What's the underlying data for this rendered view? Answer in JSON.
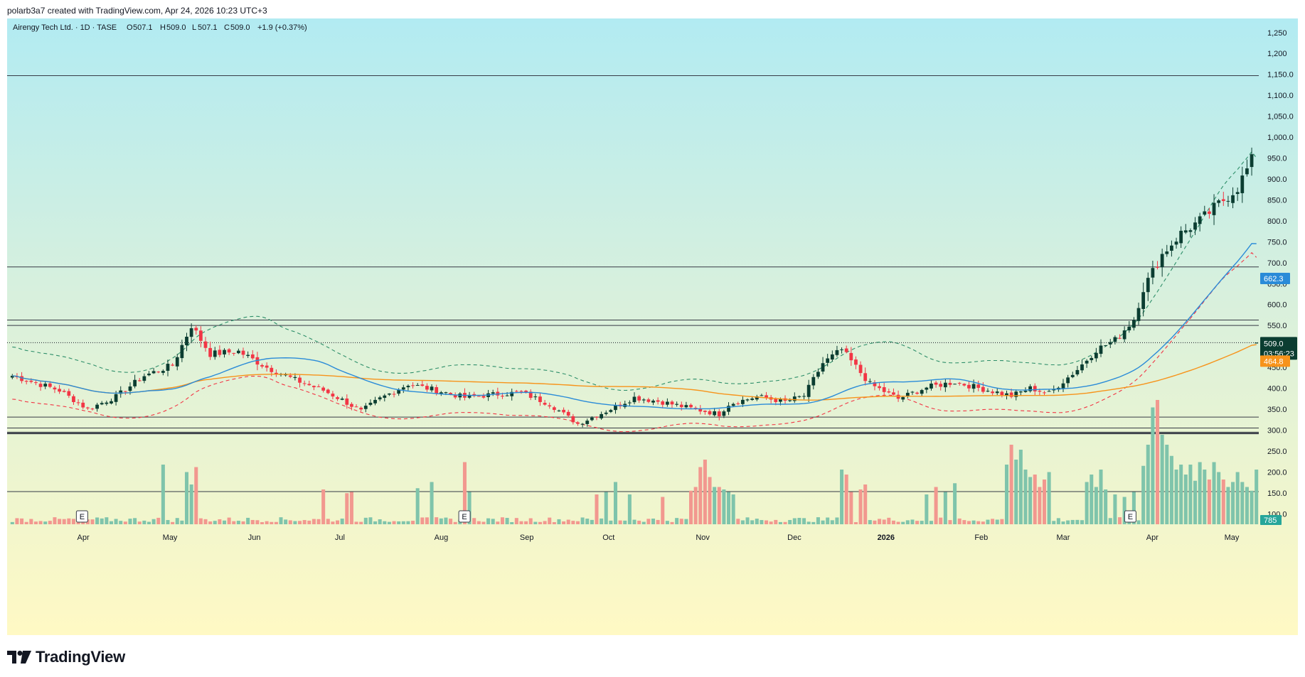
{
  "header": {
    "created_by": "polarb3a7 created with TradingView.com, Apr 24, 2026 10:23 UTC+3"
  },
  "brand": {
    "logo_text": "TradingView",
    "logo_icon": "tradingview-logo-icon"
  },
  "colors": {
    "up": "#0b3d31",
    "down": "#f23645",
    "vol_up": "#7fc4ab",
    "vol_down": "#f2988f",
    "ma_blue": "#2a8bd8",
    "ma_orange": "#f7931a",
    "band_upper": "#2f8f6a",
    "band_lower": "#f23645",
    "bg_top": "#b2ebf2",
    "bg_bottom": "#fff9c4"
  },
  "chart_data": {
    "type": "candlestick",
    "symbol_legend": "Airengy Tech Ltd. · 1D · TASE",
    "ohlc_legend": {
      "o_label": "O",
      "o": "507.1",
      "h_label": "H",
      "h": "509.0",
      "l_label": "L",
      "l": "507.1",
      "c_label": "C",
      "c": "509.0",
      "change": "+1.9 (+0.37%)"
    },
    "y_axis": {
      "min": 75,
      "max": 1270,
      "ticks": [
        100,
        150,
        200,
        250,
        300,
        350,
        400,
        450,
        500,
        550,
        600,
        650,
        700,
        750,
        800,
        850,
        900,
        950,
        1000,
        1050,
        1100,
        1150,
        1200,
        1250
      ],
      "tick_labels": [
        "100.0",
        "150.0",
        "200.0",
        "250.0",
        "300.0",
        "350.0",
        "400.0",
        "450.0",
        "500.0",
        "550.0",
        "600.0",
        "650.0",
        "700.0",
        "750.0",
        "800.0",
        "850.0",
        "900.0",
        "950.0",
        "1,000.0",
        "1,050.0",
        "1,100.0",
        "1,150.0",
        "1,200",
        "1,250"
      ]
    },
    "x_axis": {
      "labels": [
        "Apr",
        "May",
        "Jun",
        "Jul",
        "Aug",
        "Sep",
        "Oct",
        "Nov",
        "Dec",
        "2026",
        "Feb",
        "Mar",
        "Apr",
        "May"
      ],
      "positions": [
        0.06,
        0.131,
        0.2,
        0.27,
        0.353,
        0.423,
        0.49,
        0.567,
        0.642,
        0.717,
        0.795,
        0.862,
        0.935,
        1.0
      ],
      "bold": [
        false,
        false,
        false,
        false,
        false,
        false,
        false,
        false,
        false,
        true,
        false,
        false,
        false,
        false
      ]
    },
    "horizontal_levels": [
      1147,
      690,
      563,
      550,
      331,
      305,
      295,
      292,
      153
    ],
    "current_price": {
      "value": 509.0,
      "label": "509.0",
      "countdown": "03:56:23"
    },
    "price_badges": [
      {
        "value": 662.3,
        "label": "662.3",
        "color": "#2a8bd8"
      },
      {
        "value": 464.8,
        "label": "464.8",
        "color": "#f7931a"
      }
    ],
    "volume_badge": {
      "label": "785"
    },
    "earnings_markers": [
      {
        "label": "E",
        "position": 0.059
      },
      {
        "label": "E",
        "position": 0.372
      },
      {
        "label": "E",
        "position": 0.917
      }
    ],
    "candles_count": 265,
    "anchors": [
      [
        0,
        430
      ],
      [
        10,
        395
      ],
      [
        16,
        350
      ],
      [
        22,
        380
      ],
      [
        28,
        430
      ],
      [
        34,
        455
      ],
      [
        38,
        550
      ],
      [
        42,
        482
      ],
      [
        48,
        488
      ],
      [
        54,
        450
      ],
      [
        60,
        420
      ],
      [
        66,
        395
      ],
      [
        70,
        372
      ],
      [
        74,
        345
      ],
      [
        78,
        375
      ],
      [
        84,
        410
      ],
      [
        90,
        395
      ],
      [
        96,
        378
      ],
      [
        102,
        385
      ],
      [
        108,
        390
      ],
      [
        114,
        362
      ],
      [
        120,
        315
      ],
      [
        126,
        345
      ],
      [
        132,
        378
      ],
      [
        138,
        367
      ],
      [
        144,
        352
      ],
      [
        150,
        338
      ],
      [
        152,
        362
      ],
      [
        158,
        380
      ],
      [
        164,
        368
      ],
      [
        168,
        382
      ],
      [
        172,
        460
      ],
      [
        176,
        492
      ],
      [
        182,
        410
      ],
      [
        188,
        375
      ],
      [
        194,
        402
      ],
      [
        200,
        415
      ],
      [
        206,
        398
      ],
      [
        212,
        382
      ],
      [
        216,
        400
      ],
      [
        220,
        388
      ],
      [
        226,
        445
      ],
      [
        230,
        492
      ],
      [
        234,
        515
      ],
      [
        238,
        565
      ],
      [
        240,
        638
      ],
      [
        244,
        720
      ],
      [
        248,
        770
      ],
      [
        252,
        800
      ],
      [
        256,
        840
      ],
      [
        260,
        880
      ],
      [
        264,
        965
      ],
      [
        268,
        1050
      ],
      [
        270,
        1000
      ],
      [
        272,
        920
      ],
      [
        274,
        940
      ],
      [
        276,
        840
      ],
      [
        278,
        740
      ],
      [
        280,
        700
      ],
      [
        284,
        665
      ],
      [
        288,
        640
      ],
      [
        292,
        612
      ],
      [
        294,
        572
      ],
      [
        298,
        640
      ],
      [
        302,
        625
      ],
      [
        306,
        608
      ],
      [
        310,
        570
      ],
      [
        314,
        545
      ],
      [
        318,
        530
      ],
      [
        322,
        510
      ],
      [
        324,
        507
      ],
      [
        326,
        509
      ]
    ],
    "volume_spikes": [
      [
        32,
        48
      ],
      [
        37,
        42
      ],
      [
        38,
        32
      ],
      [
        39,
        46
      ],
      [
        66,
        28
      ],
      [
        71,
        25
      ],
      [
        72,
        26
      ],
      [
        86,
        29
      ],
      [
        89,
        34
      ],
      [
        96,
        50
      ],
      [
        97,
        26
      ],
      [
        124,
        24
      ],
      [
        126,
        26
      ],
      [
        128,
        34
      ],
      [
        131,
        24
      ],
      [
        138,
        22
      ],
      [
        144,
        27
      ],
      [
        145,
        30
      ],
      [
        146,
        46
      ],
      [
        147,
        52
      ],
      [
        148,
        38
      ],
      [
        149,
        30
      ],
      [
        150,
        30
      ],
      [
        151,
        28
      ],
      [
        152,
        26
      ],
      [
        153,
        24
      ],
      [
        176,
        44
      ],
      [
        177,
        40
      ],
      [
        178,
        26
      ],
      [
        180,
        28
      ],
      [
        181,
        32
      ],
      [
        194,
        24
      ],
      [
        196,
        30
      ],
      [
        198,
        26
      ],
      [
        200,
        33
      ],
      [
        211,
        48
      ],
      [
        212,
        64
      ],
      [
        213,
        52
      ],
      [
        214,
        60
      ],
      [
        215,
        44
      ],
      [
        216,
        38
      ],
      [
        217,
        40
      ],
      [
        218,
        30
      ],
      [
        219,
        36
      ],
      [
        220,
        42
      ],
      [
        228,
        34
      ],
      [
        229,
        40
      ],
      [
        230,
        30
      ],
      [
        231,
        44
      ],
      [
        232,
        28
      ],
      [
        234,
        24
      ],
      [
        236,
        22
      ],
      [
        238,
        26
      ],
      [
        240,
        47
      ],
      [
        241,
        64
      ],
      [
        242,
        94
      ],
      [
        243,
        100
      ],
      [
        244,
        72
      ],
      [
        245,
        64
      ],
      [
        246,
        55
      ],
      [
        247,
        44
      ],
      [
        248,
        48
      ],
      [
        249,
        40
      ],
      [
        250,
        48
      ],
      [
        251,
        35
      ],
      [
        252,
        50
      ],
      [
        253,
        44
      ],
      [
        254,
        36
      ],
      [
        255,
        50
      ],
      [
        256,
        42
      ],
      [
        257,
        36
      ],
      [
        258,
        30
      ],
      [
        259,
        34
      ],
      [
        260,
        42
      ],
      [
        261,
        34
      ],
      [
        262,
        30
      ],
      [
        263,
        27
      ],
      [
        264,
        44
      ],
      [
        265,
        36
      ],
      [
        266,
        42
      ],
      [
        267,
        34
      ],
      [
        268,
        56
      ],
      [
        269,
        30
      ],
      [
        270,
        74
      ],
      [
        271,
        42
      ],
      [
        272,
        38
      ],
      [
        273,
        30
      ],
      [
        274,
        36
      ],
      [
        275,
        47
      ],
      [
        276,
        39
      ],
      [
        277,
        30
      ],
      [
        278,
        28
      ],
      [
        280,
        26
      ],
      [
        281,
        35
      ],
      [
        282,
        30
      ],
      [
        283,
        33
      ],
      [
        284,
        28
      ],
      [
        285,
        26
      ],
      [
        286,
        36
      ],
      [
        287,
        27
      ],
      [
        288,
        25
      ],
      [
        289,
        30
      ],
      [
        290,
        32
      ],
      [
        292,
        30
      ],
      [
        294,
        29
      ],
      [
        295,
        28
      ],
      [
        296,
        28
      ],
      [
        297,
        27
      ],
      [
        298,
        33
      ],
      [
        300,
        24
      ],
      [
        301,
        26
      ],
      [
        302,
        36
      ],
      [
        303,
        38
      ],
      [
        304,
        42
      ],
      [
        305,
        36
      ],
      [
        306,
        32
      ],
      [
        307,
        40
      ]
    ]
  }
}
